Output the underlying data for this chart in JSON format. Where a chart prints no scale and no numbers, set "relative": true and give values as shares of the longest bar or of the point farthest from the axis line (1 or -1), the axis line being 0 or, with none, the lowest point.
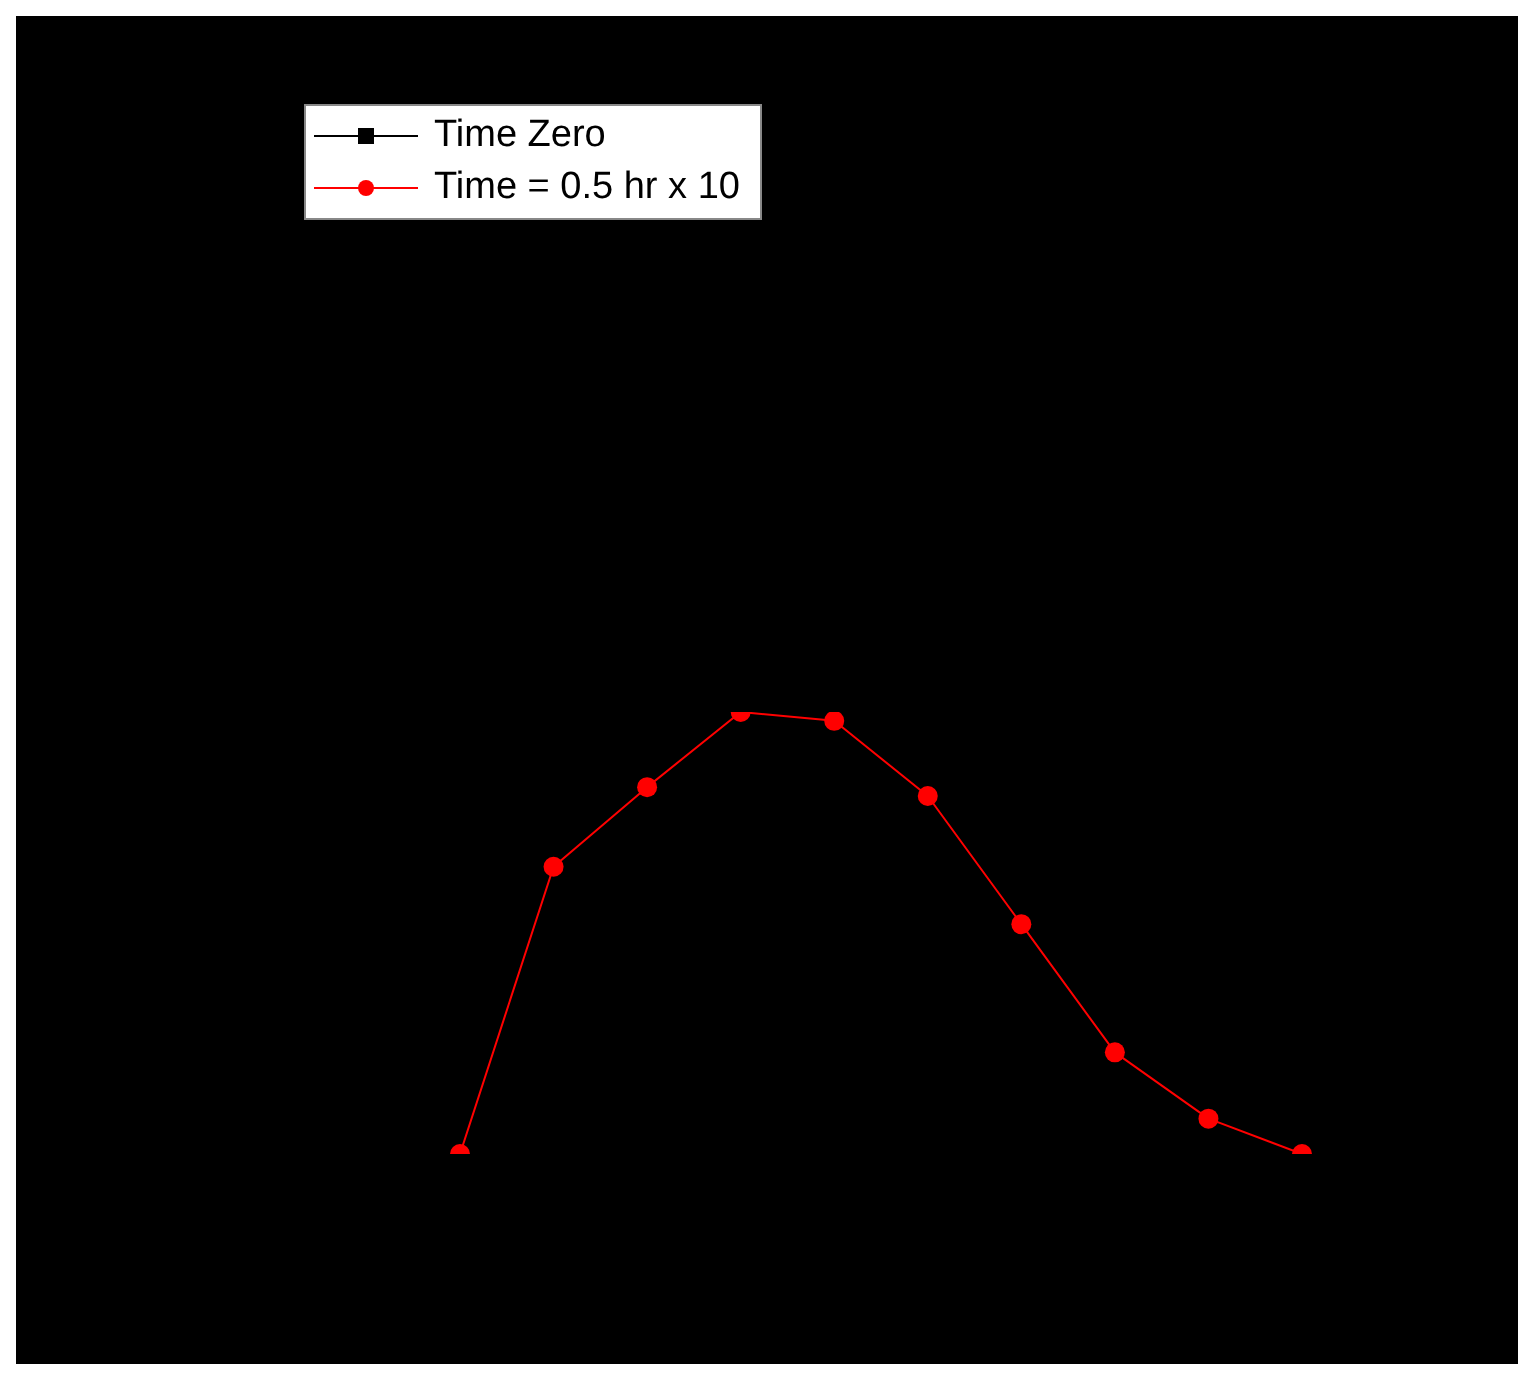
{
  "chart_data": {
    "type": "line",
    "relative": true,
    "categories": [
      null,
      null,
      null,
      null,
      null,
      null,
      null,
      null,
      null,
      null
    ],
    "series": [
      {
        "name": "Time Zero",
        "color": "#000000",
        "marker": "square",
        "values": [
          null,
          null,
          null,
          null,
          null,
          null,
          null,
          null,
          null,
          null
        ]
      },
      {
        "name": "Time = 0.5 hr x 10",
        "color": "#ff0000",
        "marker": "circle",
        "values": [
          0,
          0.65,
          0.83,
          1,
          0.98,
          0.81,
          0.52,
          0.23,
          0.08,
          0
        ]
      }
    ],
    "legend": "top left",
    "grid": false,
    "line_style": "solid"
  }
}
